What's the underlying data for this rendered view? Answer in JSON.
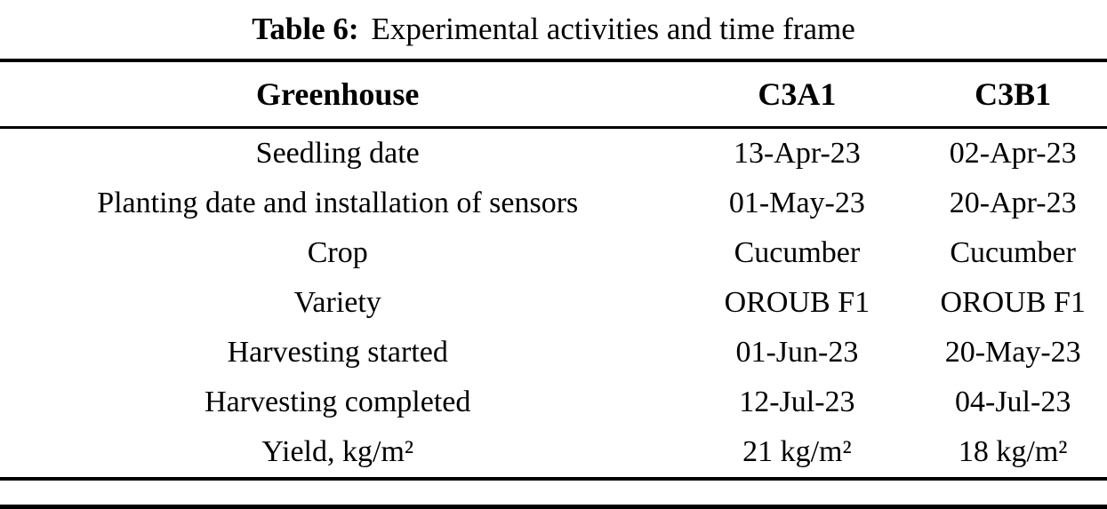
{
  "caption": {
    "label": "Table 6:",
    "title": "Experimental activities and time frame"
  },
  "table": {
    "headers": [
      "Greenhouse",
      "C3A1",
      "C3B1"
    ],
    "rows": [
      {
        "label": "Seedling date",
        "c3a1": "13-Apr-23",
        "c3b1": "02-Apr-23"
      },
      {
        "label": "Planting date and installation of sensors",
        "c3a1": "01-May-23",
        "c3b1": "20-Apr-23"
      },
      {
        "label": "Crop",
        "c3a1": "Cucumber",
        "c3b1": "Cucumber"
      },
      {
        "label": "Variety",
        "c3a1": "OROUB F1",
        "c3b1": "OROUB F1"
      },
      {
        "label": "Harvesting started",
        "c3a1": "01-Jun-23",
        "c3b1": "20-May-23"
      },
      {
        "label": "Harvesting completed",
        "c3a1": "12-Jul-23",
        "c3b1": "04-Jul-23"
      },
      {
        "label": "Yield, kg/m²",
        "c3a1": "21 kg/m²",
        "c3b1": "18 kg/m²"
      }
    ]
  },
  "colors": {
    "background": "#ffffff",
    "text": "#000000",
    "rule": "#000000"
  }
}
